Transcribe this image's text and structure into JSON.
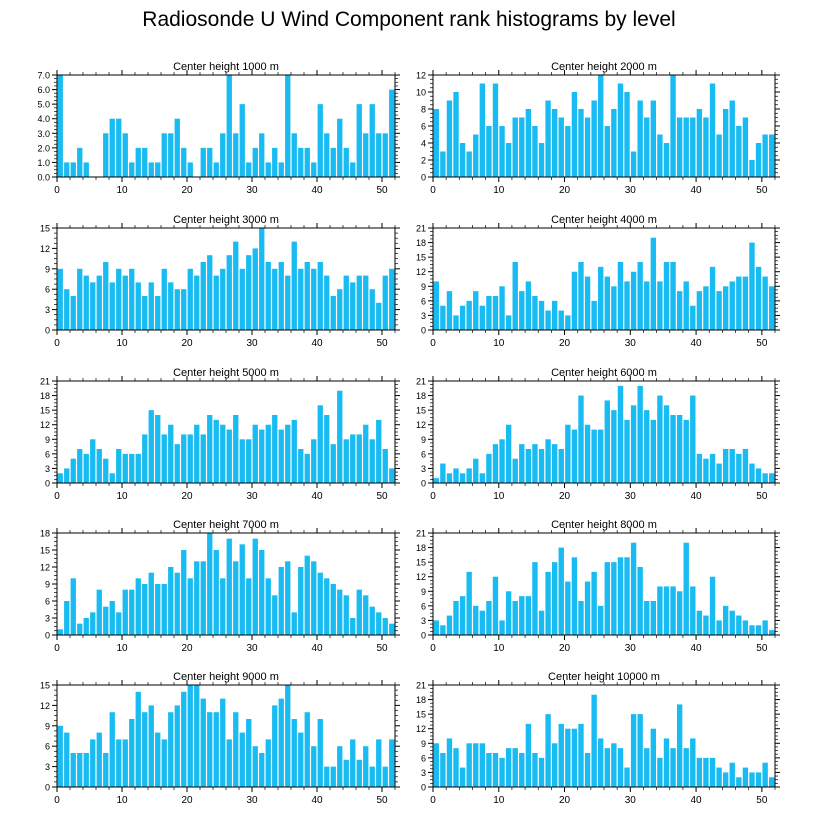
{
  "title": "Radiosonde U Wind Component rank histograms by level",
  "colors": {
    "bar": "#18BCF2",
    "axis": "#000000"
  },
  "chart_data": [
    {
      "type": "bar",
      "title": "Center height 1000 m",
      "xlabel": "",
      "ylabel": "",
      "xlim": [
        0,
        52
      ],
      "ylim": [
        0,
        7
      ],
      "xticks": [
        "0",
        "10",
        "20",
        "30",
        "40",
        "50"
      ],
      "yticks": [
        "0.0",
        "1.0",
        "2.0",
        "3.0",
        "4.0",
        "5.0",
        "6.0",
        "7.0"
      ],
      "values": [
        7,
        1,
        1,
        2,
        1,
        0,
        0,
        3,
        4,
        4,
        3,
        1,
        2,
        2,
        1,
        1,
        3,
        3,
        4,
        2,
        1,
        0,
        2,
        2,
        1,
        3,
        7,
        3,
        5,
        1,
        2,
        3,
        1,
        2,
        1,
        7,
        3,
        2,
        2,
        1,
        5,
        3,
        2,
        4,
        2,
        1,
        5,
        3,
        5,
        3,
        3,
        6
      ]
    },
    {
      "type": "bar",
      "title": "Center height 2000 m",
      "xlabel": "",
      "ylabel": "",
      "xlim": [
        0,
        52
      ],
      "ylim": [
        0,
        12
      ],
      "xticks": [
        "0",
        "10",
        "20",
        "30",
        "40",
        "50"
      ],
      "yticks": [
        "0",
        "2",
        "4",
        "6",
        "8",
        "10",
        "12"
      ],
      "values": [
        8,
        3,
        9,
        10,
        4,
        3,
        5,
        11,
        6,
        11,
        6,
        4,
        7,
        7,
        8,
        6,
        4,
        9,
        8,
        7,
        6,
        10,
        8,
        7,
        9,
        12,
        6,
        8,
        11,
        10,
        3,
        9,
        7,
        9,
        5,
        4,
        12,
        7,
        7,
        7,
        8,
        7,
        11,
        5,
        8,
        9,
        6,
        7,
        2,
        4,
        5,
        5
      ]
    },
    {
      "type": "bar",
      "title": "Center height 3000 m",
      "xlabel": "",
      "ylabel": "",
      "xlim": [
        0,
        52
      ],
      "ylim": [
        0,
        15
      ],
      "xticks": [
        "0",
        "10",
        "20",
        "30",
        "40",
        "50"
      ],
      "yticks": [
        "0",
        "3",
        "6",
        "9",
        "12",
        "15"
      ],
      "values": [
        9,
        6,
        5,
        9,
        8,
        7,
        8,
        10,
        7,
        9,
        8,
        9,
        7,
        5,
        7,
        5,
        9,
        7,
        6,
        6,
        9,
        8,
        10,
        11,
        8,
        9,
        11,
        13,
        9,
        11,
        12,
        15,
        10,
        9,
        10,
        8,
        13,
        9,
        10,
        9,
        10,
        8,
        5,
        6,
        8,
        7,
        8,
        8,
        6,
        4,
        8,
        9
      ]
    },
    {
      "type": "bar",
      "title": "Center height 4000 m",
      "xlabel": "",
      "ylabel": "",
      "xlim": [
        0,
        52
      ],
      "ylim": [
        0,
        21
      ],
      "xticks": [
        "0",
        "10",
        "20",
        "30",
        "40",
        "50"
      ],
      "yticks": [
        "0",
        "3",
        "6",
        "9",
        "12",
        "15",
        "18",
        "21"
      ],
      "values": [
        10,
        5,
        8,
        3,
        5,
        6,
        8,
        5,
        7,
        7,
        9,
        3,
        14,
        8,
        10,
        7,
        6,
        4,
        6,
        4,
        3,
        12,
        14,
        11,
        6,
        13,
        11,
        9,
        14,
        10,
        12,
        14,
        10,
        19,
        10,
        14,
        14,
        8,
        10,
        5,
        8,
        9,
        13,
        8,
        9,
        10,
        11,
        11,
        18,
        13,
        11,
        9
      ]
    },
    {
      "type": "bar",
      "title": "Center height 5000 m",
      "xlabel": "",
      "ylabel": "",
      "xlim": [
        0,
        52
      ],
      "ylim": [
        0,
        21
      ],
      "xticks": [
        "0",
        "10",
        "20",
        "30",
        "40",
        "50"
      ],
      "yticks": [
        "0",
        "3",
        "6",
        "9",
        "12",
        "15",
        "18",
        "21"
      ],
      "values": [
        2,
        3,
        5,
        7,
        6,
        9,
        7,
        5,
        2,
        7,
        6,
        6,
        6,
        10,
        15,
        14,
        10,
        12,
        8,
        10,
        10,
        12,
        10,
        14,
        13,
        12,
        11,
        14,
        9,
        9,
        12,
        11,
        12,
        14,
        11,
        12,
        13,
        7,
        6,
        9,
        16,
        14,
        8,
        19,
        9,
        10,
        10,
        12,
        9,
        13,
        7,
        3
      ]
    },
    {
      "type": "bar",
      "title": "Center height 6000 m",
      "xlabel": "",
      "ylabel": "",
      "xlim": [
        0,
        52
      ],
      "ylim": [
        0,
        21
      ],
      "xticks": [
        "0",
        "10",
        "20",
        "30",
        "40",
        "50"
      ],
      "yticks": [
        "0",
        "3",
        "6",
        "9",
        "12",
        "15",
        "18",
        "21"
      ],
      "values": [
        1,
        4,
        2,
        3,
        2,
        3,
        5,
        2,
        6,
        8,
        9,
        12,
        5,
        8,
        7,
        8,
        7,
        9,
        8,
        7,
        12,
        11,
        18,
        12,
        11,
        11,
        17,
        15,
        20,
        13,
        16,
        20,
        15,
        13,
        18,
        16,
        14,
        14,
        13,
        18,
        6,
        5,
        6,
        4,
        7,
        7,
        6,
        7,
        4,
        3,
        2,
        2
      ]
    },
    {
      "type": "bar",
      "title": "Center height 7000 m",
      "xlabel": "",
      "ylabel": "",
      "xlim": [
        0,
        52
      ],
      "ylim": [
        0,
        18
      ],
      "xticks": [
        "0",
        "10",
        "20",
        "30",
        "40",
        "50"
      ],
      "yticks": [
        "0",
        "3",
        "6",
        "9",
        "12",
        "15",
        "18"
      ],
      "values": [
        1,
        6,
        10,
        2,
        3,
        4,
        8,
        5,
        6,
        4,
        8,
        8,
        10,
        9,
        11,
        9,
        9,
        12,
        11,
        15,
        10,
        13,
        13,
        18,
        15,
        10,
        17,
        13,
        16,
        10,
        17,
        15,
        10,
        7,
        12,
        13,
        4,
        12,
        14,
        13,
        11,
        10,
        9,
        8,
        7,
        3,
        8,
        7,
        5,
        4,
        3,
        2
      ]
    },
    {
      "type": "bar",
      "title": "Center height 8000 m",
      "xlabel": "",
      "ylabel": "",
      "xlim": [
        0,
        52
      ],
      "ylim": [
        0,
        21
      ],
      "xticks": [
        "0",
        "10",
        "20",
        "30",
        "40",
        "50"
      ],
      "yticks": [
        "0",
        "3",
        "6",
        "9",
        "12",
        "15",
        "18",
        "21"
      ],
      "values": [
        3,
        2,
        4,
        7,
        8,
        13,
        6,
        5,
        7,
        12,
        3,
        9,
        7,
        8,
        8,
        15,
        5,
        13,
        15,
        18,
        11,
        16,
        7,
        11,
        13,
        6,
        15,
        15,
        16,
        16,
        19,
        14,
        7,
        7,
        10,
        10,
        10,
        9,
        19,
        10,
        5,
        4,
        12,
        3,
        6,
        5,
        4,
        3,
        2,
        2,
        3,
        1
      ]
    },
    {
      "type": "bar",
      "title": "Center height 9000 m",
      "xlabel": "",
      "ylabel": "",
      "xlim": [
        0,
        52
      ],
      "ylim": [
        0,
        15
      ],
      "xticks": [
        "0",
        "10",
        "20",
        "30",
        "40",
        "50"
      ],
      "yticks": [
        "0",
        "3",
        "6",
        "9",
        "12",
        "15"
      ],
      "values": [
        9,
        8,
        5,
        5,
        5,
        7,
        8,
        5,
        11,
        7,
        7,
        10,
        14,
        11,
        12,
        8,
        7,
        11,
        12,
        14,
        15,
        15,
        13,
        11,
        11,
        13,
        7,
        11,
        8,
        10,
        6,
        5,
        7,
        12,
        13,
        15,
        10,
        8,
        11,
        6,
        10,
        3,
        3,
        6,
        4,
        7,
        4,
        6,
        3,
        7,
        3,
        7
      ]
    },
    {
      "type": "bar",
      "title": "Center height 10000 m",
      "xlabel": "",
      "ylabel": "",
      "xlim": [
        0,
        52
      ],
      "ylim": [
        0,
        21
      ],
      "xticks": [
        "0",
        "10",
        "20",
        "30",
        "40",
        "50"
      ],
      "yticks": [
        "0",
        "3",
        "6",
        "9",
        "12",
        "15",
        "18",
        "21"
      ],
      "values": [
        9,
        7,
        10,
        8,
        4,
        9,
        9,
        9,
        7,
        7,
        6,
        8,
        8,
        7,
        13,
        7,
        6,
        15,
        9,
        13,
        12,
        12,
        13,
        7,
        19,
        10,
        8,
        9,
        8,
        4,
        15,
        15,
        8,
        12,
        6,
        10,
        8,
        17,
        8,
        10,
        6,
        6,
        6,
        4,
        3,
        5,
        2,
        4,
        3,
        3,
        5,
        2
      ]
    }
  ]
}
